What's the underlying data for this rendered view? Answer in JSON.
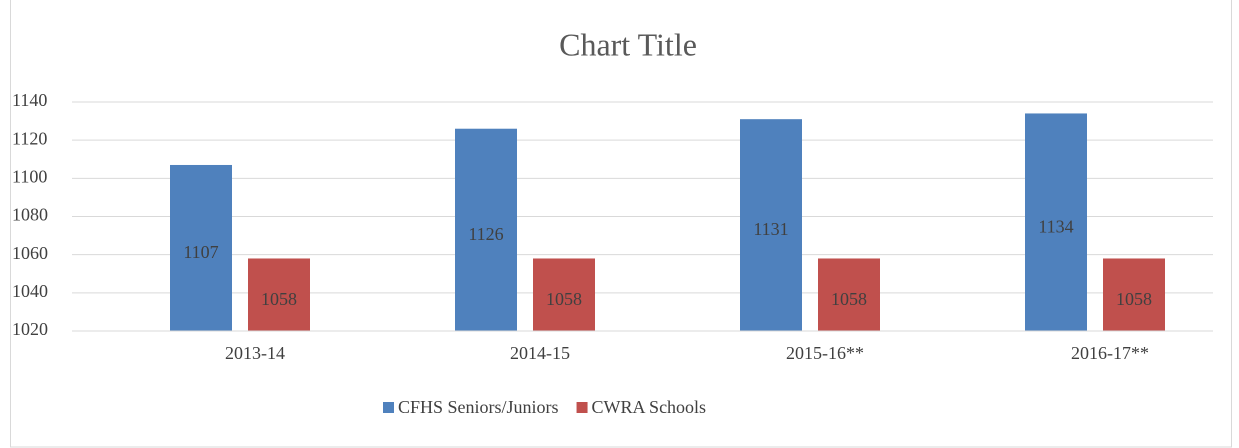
{
  "chart_data": {
    "type": "bar",
    "title": "Chart Title",
    "categories": [
      "2013-14",
      "2014-15",
      "2015-16**",
      "2016-17**"
    ],
    "series": [
      {
        "name": "CFHS Seniors/Juniors",
        "color": "#4f81bd",
        "values": [
          1107,
          1126,
          1131,
          1134
        ]
      },
      {
        "name": "CWRA Schools",
        "color": "#c0504d",
        "values": [
          1058,
          1058,
          1058,
          1058
        ]
      }
    ],
    "ylim": [
      1020,
      1140
    ],
    "yticks": [
      1020,
      1040,
      1060,
      1080,
      1100,
      1120,
      1140
    ],
    "grid": true,
    "legend": "bottom"
  }
}
